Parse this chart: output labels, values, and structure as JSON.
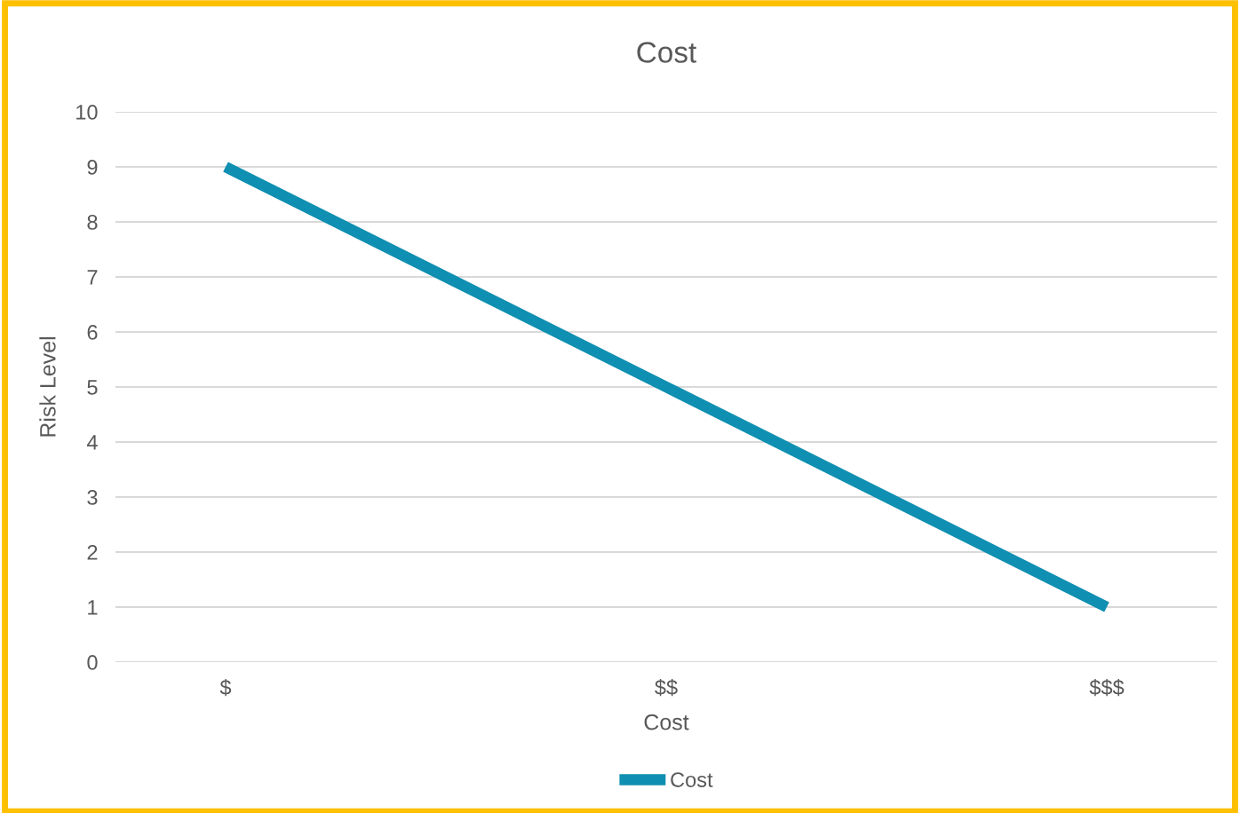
{
  "chart_data": {
    "type": "line",
    "title": "Cost",
    "xlabel": "Cost",
    "ylabel": "Risk Level",
    "categories": [
      "$",
      "$$",
      "$$$"
    ],
    "series": [
      {
        "name": "Cost",
        "color": "#0f8fb1",
        "values": [
          9,
          5,
          1
        ]
      }
    ],
    "ylim": [
      0,
      10
    ],
    "yticks": [
      0,
      1,
      2,
      3,
      4,
      5,
      6,
      7,
      8,
      9,
      10
    ],
    "grid": "y",
    "legend": "bottom",
    "marker": "none",
    "line_style": "solid"
  }
}
